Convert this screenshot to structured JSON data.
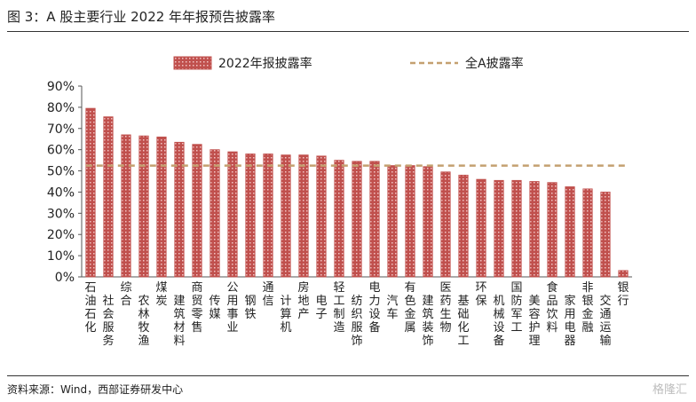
{
  "figure": {
    "title": "图 3：A 股主要行业 2022 年年报预告披露率",
    "source": "资料来源：Wind，西部证券研发中心",
    "watermark": "格隆汇"
  },
  "colors": {
    "bar_fill": "#c0504d",
    "bar_pattern": "#f2c4c4",
    "reference_line": "#c4a070",
    "axis": "#555555"
  },
  "chart_data": {
    "type": "bar",
    "title": "",
    "xlabel": "",
    "ylabel": "",
    "ylim": [
      0,
      90
    ],
    "yticks": [
      0,
      10,
      20,
      30,
      40,
      50,
      60,
      70,
      80,
      90
    ],
    "ytick_labels": [
      "0%",
      "10%",
      "20%",
      "30%",
      "40%",
      "50%",
      "60%",
      "70%",
      "80%",
      "90%"
    ],
    "grid": false,
    "legend_position": "top",
    "categories": [
      "石油石化",
      "社会服务",
      "综合",
      "农林牧渔",
      "煤炭",
      "建筑材料",
      "商贸零售",
      "传媒",
      "公用事业",
      "钢铁",
      "通信",
      "计算机",
      "房地产",
      "电子",
      "轻工制造",
      "纺织服饰",
      "电力设备",
      "汽车",
      "有色金属",
      "建筑装饰",
      "医药生物",
      "基础化工",
      "环保",
      "机械设备",
      "国防军工",
      "美容护理",
      "食品饮料",
      "家用电器",
      "非银金融",
      "交通运输",
      "银行"
    ],
    "series": [
      {
        "name": "2022年报披露率",
        "values": [
          79.5,
          75.5,
          67,
          66.5,
          66,
          63.5,
          62.5,
          60,
          59,
          58,
          58,
          57.5,
          57.5,
          57,
          55,
          54.5,
          54.5,
          52.5,
          52.5,
          52,
          49.5,
          48,
          46,
          45.5,
          45.5,
          45,
          44.5,
          42.5,
          41.5,
          40,
          3
        ]
      }
    ],
    "reference": {
      "name": "全A披露率",
      "value": 52.5
    }
  }
}
